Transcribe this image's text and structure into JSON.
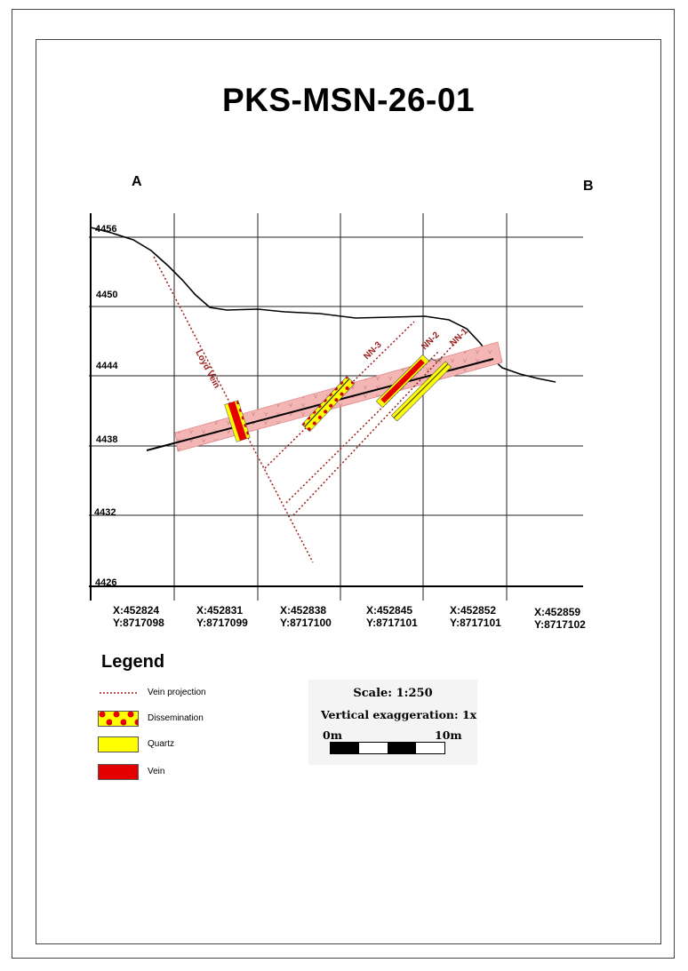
{
  "title": "PKS-MSN-26-01",
  "section": {
    "start_label": "A",
    "end_label": "B"
  },
  "elevation_labels": [
    "4456",
    "4450",
    "4444",
    "4438",
    "4432",
    "4426"
  ],
  "coordinates": [
    {
      "x": "X:452824",
      "y": "Y:8717098"
    },
    {
      "x": "X:452831",
      "y": "Y:8717099"
    },
    {
      "x": "X:452838",
      "y": "Y:8717100"
    },
    {
      "x": "X:452845",
      "y": "Y:8717101"
    },
    {
      "x": "X:452852",
      "y": "Y:8717101"
    },
    {
      "x": "X:452859",
      "y": "Y:8717102"
    }
  ],
  "vein_labels": {
    "loyd": "Loyd Vein",
    "nn3": "NN-3",
    "nn2": "NN-2",
    "nn1": "NN-1"
  },
  "legend": {
    "title": "Legend",
    "items": [
      {
        "label": "Vein projection",
        "symbol": "dotted-line-icon"
      },
      {
        "label": "Dissemination",
        "symbol": "dissemination-pattern-icon"
      },
      {
        "label": "Quartz",
        "symbol": "quartz-swatch-icon"
      },
      {
        "label": "Vein",
        "symbol": "vein-swatch-icon"
      }
    ]
  },
  "scale": {
    "scale_text": "Scale: 1:250",
    "exaggeration_text": "Vertical exaggeration: 1x",
    "start_label": "0m",
    "end_label": "10m"
  },
  "colors": {
    "vein": "#e50000",
    "quartz": "#ffff00",
    "projection": "#9b1c1c",
    "dissemination_band": "#f4b5b5",
    "grid": "#111111"
  }
}
